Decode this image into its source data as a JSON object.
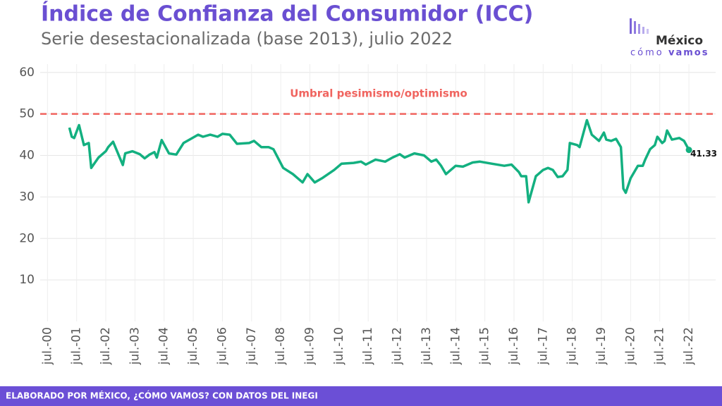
{
  "chart_data": {
    "type": "line",
    "title": "Índice de Confianza del Consumidor (ICC)",
    "subtitle": "Serie desestacionalizada (base 2013), julio 2022",
    "logo": {
      "top": "México",
      "bottom_a": "cómo",
      "bottom_b": "vamos"
    },
    "footer": "ELABORADO POR MÉXICO, ¿CÓMO VAMOS? CON DATOS DEL INEGI",
    "reference_line": {
      "value": 50,
      "label": "Umbral pesimismo/optimismo",
      "color": "#f0645f"
    },
    "x": [
      "2001-04",
      "2001-05",
      "2001-06",
      "2001-08",
      "2001-10",
      "2001-12",
      "2002-01",
      "2002-04",
      "2002-07",
      "2002-08",
      "2002-10",
      "2002-12",
      "2003-02",
      "2003-03",
      "2003-06",
      "2003-09",
      "2003-11",
      "2004-01",
      "2004-03",
      "2004-04",
      "2004-06",
      "2004-09",
      "2004-12",
      "2005-03",
      "2005-06",
      "2005-09",
      "2005-11",
      "2006-02",
      "2006-05",
      "2006-07",
      "2006-10",
      "2007-01",
      "2007-06",
      "2007-08",
      "2007-11",
      "2008-02",
      "2008-04",
      "2008-08",
      "2008-12",
      "2009-02",
      "2009-04",
      "2009-06",
      "2009-09",
      "2009-12",
      "2010-05",
      "2010-08",
      "2011-01",
      "2011-04",
      "2011-06",
      "2011-10",
      "2012-02",
      "2012-05",
      "2012-08",
      "2012-10",
      "2013-02",
      "2013-06",
      "2013-09",
      "2013-11",
      "2014-01",
      "2014-03",
      "2014-07",
      "2014-10",
      "2015-02",
      "2015-05",
      "2015-10",
      "2016-03",
      "2016-06",
      "2016-09",
      "2016-10",
      "2016-12",
      "2017-01",
      "2017-04",
      "2017-07",
      "2017-09",
      "2017-11",
      "2018-01",
      "2018-03",
      "2018-05",
      "2018-06",
      "2018-09",
      "2018-10",
      "2019-01",
      "2019-03",
      "2019-06",
      "2019-08",
      "2019-09",
      "2019-11",
      "2020-01",
      "2020-03",
      "2020-04",
      "2020-05",
      "2020-07",
      "2020-10",
      "2020-12",
      "2021-01",
      "2021-03",
      "2021-05",
      "2021-06",
      "2021-08",
      "2021-09",
      "2021-10",
      "2021-12",
      "2022-03",
      "2022-05",
      "2022-07"
    ],
    "series": [
      {
        "name": "ICC",
        "color": "#13b080",
        "values": [
          46.7,
          44.5,
          44.2,
          47.3,
          42.5,
          43,
          37,
          39.5,
          41,
          42,
          43.3,
          40.5,
          37.7,
          40.5,
          41,
          40.3,
          39.3,
          40.2,
          40.8,
          39.5,
          43.7,
          40.5,
          40.2,
          43,
          44,
          45,
          44.5,
          45,
          44.5,
          45.2,
          45,
          42.8,
          43,
          43.5,
          42,
          42,
          41.5,
          37,
          35.5,
          34.5,
          33.5,
          35.5,
          33.5,
          34.5,
          36.5,
          38,
          38.2,
          38.5,
          37.8,
          39,
          38.5,
          39.5,
          40.3,
          39.5,
          40.5,
          40,
          38.5,
          39,
          37.5,
          35.5,
          37.5,
          37.3,
          38.3,
          38.5,
          38,
          37.5,
          37.8,
          36,
          35,
          35,
          28.7,
          35,
          36.5,
          37,
          36.5,
          34.8,
          35,
          36.5,
          43,
          42.5,
          42,
          48.5,
          45,
          43.5,
          45.5,
          43.8,
          43.5,
          44,
          42,
          32,
          31,
          34.5,
          37.5,
          37.5,
          39,
          41.5,
          42.5,
          44.5,
          43,
          43.5,
          46,
          43.8,
          44.2,
          43.5,
          41.33
        ]
      }
    ],
    "xlim": [
      "2000-04",
      "2023-06"
    ],
    "xticks": [
      {
        "value": "2000-07",
        "label": "jul.-00"
      },
      {
        "value": "2001-07",
        "label": "jul.-01"
      },
      {
        "value": "2002-07",
        "label": "jul.-02"
      },
      {
        "value": "2003-07",
        "label": "jul.-03"
      },
      {
        "value": "2004-07",
        "label": "jul.-04"
      },
      {
        "value": "2005-07",
        "label": "jul.-05"
      },
      {
        "value": "2006-07",
        "label": "jul.-06"
      },
      {
        "value": "2007-07",
        "label": "jul.-07"
      },
      {
        "value": "2008-07",
        "label": "jul.-08"
      },
      {
        "value": "2009-07",
        "label": "jul.-09"
      },
      {
        "value": "2010-07",
        "label": "jul.-10"
      },
      {
        "value": "2011-07",
        "label": "jul.-11"
      },
      {
        "value": "2012-07",
        "label": "jul.-12"
      },
      {
        "value": "2013-07",
        "label": "jul.-13"
      },
      {
        "value": "2014-07",
        "label": "jul.-14"
      },
      {
        "value": "2015-07",
        "label": "jul.-15"
      },
      {
        "value": "2016-07",
        "label": "jul.-16"
      },
      {
        "value": "2017-07",
        "label": "jul.-17"
      },
      {
        "value": "2018-07",
        "label": "jul.-18"
      },
      {
        "value": "2019-07",
        "label": "jul.-19"
      },
      {
        "value": "2020-07",
        "label": "jul.-20"
      },
      {
        "value": "2021-07",
        "label": "jul.-21"
      },
      {
        "value": "2022-07",
        "label": "jul.-22"
      }
    ],
    "ylim": [
      0,
      62
    ],
    "yticks": [
      10,
      20,
      30,
      40,
      50,
      60
    ],
    "grid": true
  }
}
